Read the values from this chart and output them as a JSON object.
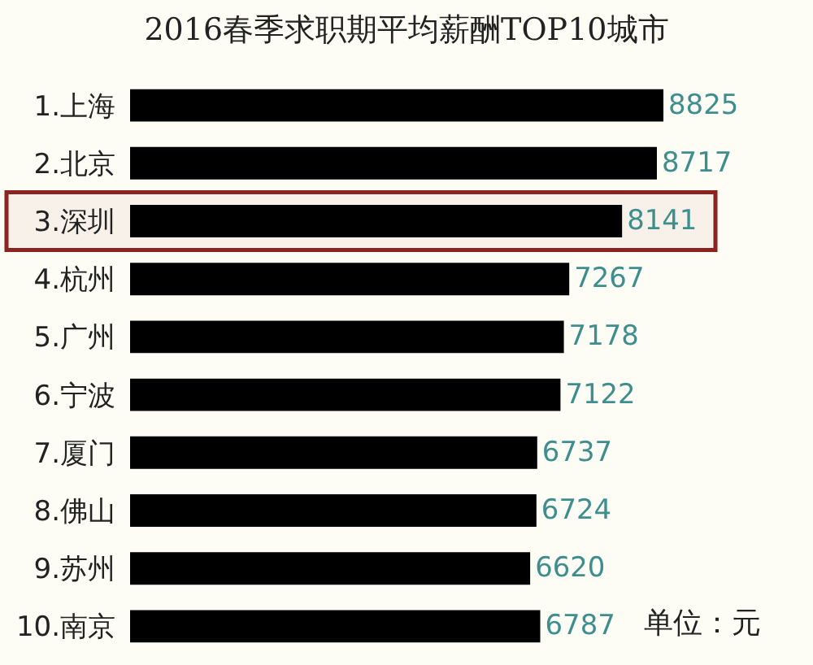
{
  "chart_data": {
    "type": "bar",
    "orientation": "horizontal",
    "title": "2016春季求职期平均薪酬TOP10城市",
    "categories": [
      "1.上海",
      "2.北京",
      "3.深圳",
      "4.杭州",
      "5.广州",
      "6.宁波",
      "7.厦门",
      "8.佛山",
      "9.苏州",
      "10.南京"
    ],
    "values": [
      8825,
      8717,
      8141,
      7267,
      7178,
      7122,
      6737,
      6724,
      6620,
      6787
    ],
    "color": "#000000",
    "data_labels": true,
    "tick_labels": "y",
    "annotations": [
      "单位：元"
    ],
    "bands": [
      {
        "axis": "y",
        "from": "3.深圳",
        "to": "3.深圳",
        "color": "#8b2323"
      }
    ]
  }
}
